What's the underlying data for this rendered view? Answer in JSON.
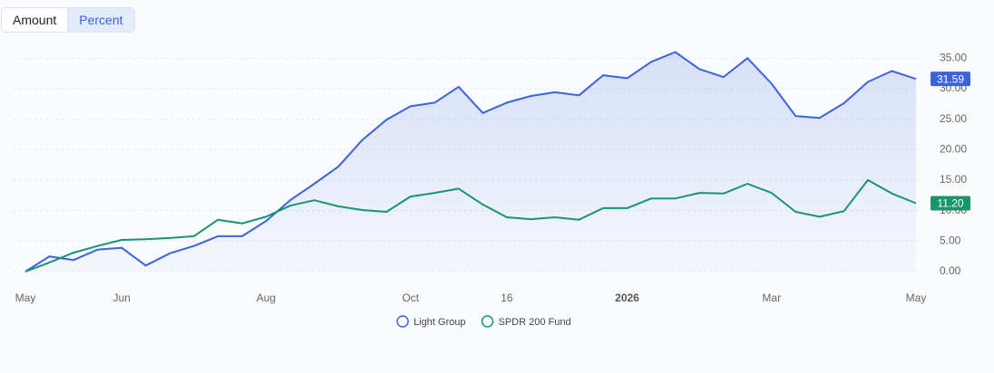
{
  "toggle": {
    "options": [
      "Amount",
      "Percent"
    ],
    "active": 1
  },
  "chart_data": {
    "type": "line",
    "categories": [
      "May",
      null,
      null,
      null,
      "Jun",
      null,
      null,
      null,
      null,
      null,
      "Aug",
      null,
      null,
      null,
      null,
      null,
      "Oct",
      null,
      null,
      null,
      "16",
      null,
      null,
      null,
      null,
      "2026",
      null,
      null,
      null,
      null,
      null,
      "Mar",
      null,
      null,
      null,
      null,
      null,
      "May"
    ],
    "series": [
      {
        "name": "Light Group",
        "color": "#3b63e0",
        "area": true,
        "values": [
          0,
          2.5,
          1.9,
          3.6,
          3.9,
          1.0,
          3.0,
          4.2,
          5.8,
          5.8,
          8.3,
          11.7,
          14.4,
          17.2,
          21.6,
          24.9,
          27.1,
          27.7,
          30.3,
          26.0,
          27.7,
          28.8,
          29.4,
          28.9,
          32.2,
          31.7,
          34.4,
          36.0,
          33.2,
          31.9,
          35.0,
          30.8,
          25.5,
          25.2,
          27.6,
          31.1,
          32.9,
          31.59
        ],
        "value_labels": [
          null,
          null,
          null,
          null,
          null,
          null,
          null,
          null,
          null,
          null,
          null,
          null,
          null,
          null,
          null,
          null,
          null,
          null,
          null,
          null,
          null,
          null,
          null,
          null,
          null,
          null,
          null,
          null,
          null,
          null,
          null,
          null,
          null,
          null,
          null,
          null,
          null,
          "31.59"
        ]
      },
      {
        "name": "SPDR 200 Fund",
        "color": "#16966a",
        "area": false,
        "values": [
          0,
          1.5,
          3.1,
          4.2,
          5.2,
          5.3,
          5.5,
          5.8,
          8.5,
          7.9,
          9.0,
          10.8,
          11.7,
          10.7,
          10.1,
          9.8,
          12.3,
          12.9,
          13.6,
          11.0,
          8.9,
          8.6,
          8.9,
          8.5,
          10.4,
          10.4,
          12.0,
          12.0,
          12.9,
          12.8,
          14.4,
          12.9,
          9.8,
          9.0,
          9.9,
          15.0,
          12.8,
          11.2
        ],
        "value_labels": [
          null,
          null,
          null,
          null,
          null,
          null,
          null,
          null,
          null,
          null,
          null,
          null,
          null,
          null,
          null,
          null,
          null,
          null,
          null,
          null,
          null,
          null,
          null,
          null,
          null,
          null,
          null,
          null,
          null,
          null,
          null,
          null,
          null,
          null,
          null,
          null,
          null,
          "11.20"
        ]
      }
    ],
    "ylim": [
      0,
      38
    ],
    "yticks": [
      {
        "value": 0,
        "label": "0.00"
      },
      {
        "value": 5,
        "label": "5.00"
      },
      {
        "value": 10,
        "label": "10.00"
      },
      {
        "value": 15,
        "label": "15.00"
      },
      {
        "value": 20,
        "label": "20.00"
      },
      {
        "value": 25,
        "label": "25.00"
      },
      {
        "value": 30,
        "label": "30.00"
      },
      {
        "value": 35,
        "label": "35.00"
      }
    ],
    "grid": true,
    "legend": "bottom"
  }
}
